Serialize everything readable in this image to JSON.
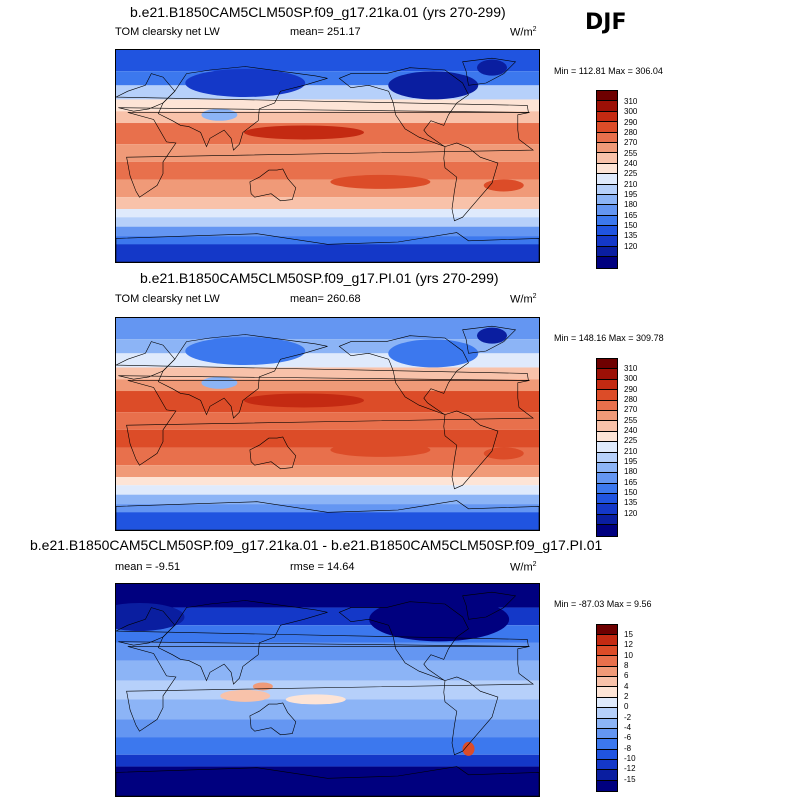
{
  "season": "DJF",
  "colors": {
    "abs_palette": [
      "#00007f",
      "#0a1ea0",
      "#1438c8",
      "#2054e0",
      "#3c78ee",
      "#6496f2",
      "#8cb4f6",
      "#b6d0fa",
      "#dfeafc",
      "#fde4d6",
      "#f8c2aa",
      "#f09a78",
      "#e8704c",
      "#dc4c28",
      "#c42a12",
      "#9c1006",
      "#6e0000"
    ],
    "diff_palette": [
      "#00007f",
      "#0a1ea0",
      "#1438c8",
      "#2054e0",
      "#3c78ee",
      "#6496f2",
      "#8cb4f6",
      "#b6d0fa",
      "#dfeafc",
      "#fde4d6",
      "#f8c2aa",
      "#f09a78",
      "#e8704c",
      "#dc4c28",
      "#c42a12",
      "#6e0000"
    ],
    "land_outline": "#000000"
  },
  "panels": [
    {
      "title": "b.e21.B1850CAM5CLM50SP.f09_g17.21ka.01 (yrs 270-299)",
      "left_label": "TOM clearsky net LW",
      "center_label": "mean= 251.17",
      "units": "W/m",
      "units_sup": "2",
      "minmax": "Min = 112.81 Max = 306.04",
      "levels": [
        "310",
        "300",
        "290",
        "280",
        "270",
        "255",
        "240",
        "225",
        "210",
        "195",
        "180",
        "165",
        "150",
        "135",
        "120"
      ],
      "kind": "abs21"
    },
    {
      "title": "b.e21.B1850CAM5CLM50SP.f09_g17.PI.01 (yrs 270-299)",
      "left_label": "TOM clearsky net LW",
      "center_label": "mean= 260.68",
      "units": "W/m",
      "units_sup": "2",
      "minmax": "Min = 148.16 Max = 309.78",
      "levels": [
        "310",
        "300",
        "290",
        "280",
        "270",
        "255",
        "240",
        "225",
        "210",
        "195",
        "180",
        "165",
        "150",
        "135",
        "120"
      ],
      "kind": "absPI"
    },
    {
      "title": "b.e21.B1850CAM5CLM50SP.f09_g17.21ka.01 - b.e21.B1850CAM5CLM50SP.f09_g17.PI.01",
      "left_label": "mean =  -9.51",
      "center_label": "rmse =  14.64",
      "units": "W/m",
      "units_sup": "2",
      "minmax": "Min = -87.03 Max =   9.56",
      "levels": [
        "15",
        "12",
        "10",
        "8",
        "6",
        "4",
        "2",
        "0",
        "-2",
        "-4",
        "-6",
        "-8",
        "-10",
        "-12",
        "-15"
      ],
      "kind": "diff"
    }
  ]
}
